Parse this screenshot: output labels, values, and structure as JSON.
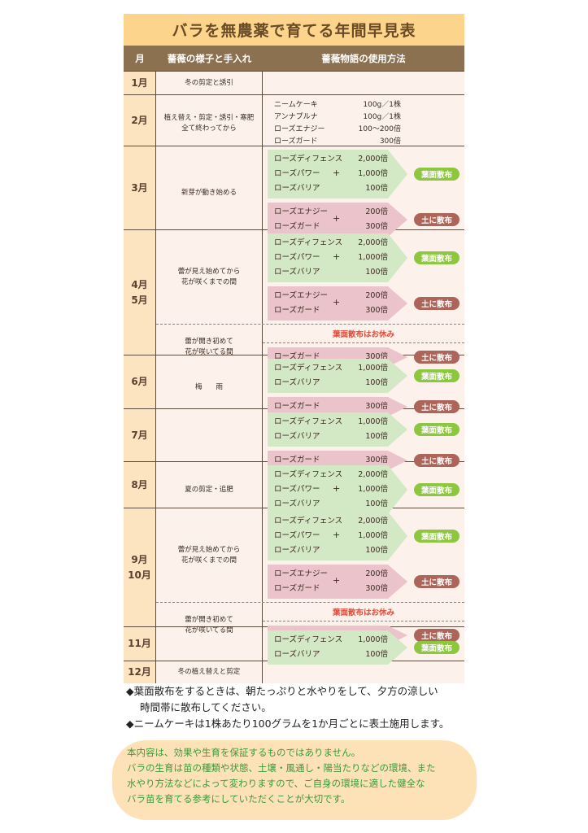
{
  "title": "バラを無農薬で育てる年間早見表",
  "header": {
    "month": "月",
    "care": "薔薇の様子と手入れ",
    "method": "薔薇物語の使用方法"
  },
  "colors": {
    "title_bg": "#fcd48b",
    "header_bg": "#8b7150",
    "month_bg": "#fde4c0",
    "leaf_bg": "#d3e8c4",
    "leaf_badge": "#8dc63f",
    "soil_bg": "#ebc3cb",
    "soil_badge": "#ae6559",
    "rest_text": "#e24b3a",
    "disclaimer_text": "#3a9a3a"
  },
  "rows": [
    {
      "month": "1月",
      "sections": [
        {
          "care": "冬の剪定と誘引",
          "groups": []
        }
      ]
    },
    {
      "month": "2月",
      "sections": [
        {
          "care": "植え替え・剪定・誘引・寒肥\n全て終わってから",
          "plain": [
            {
              "name": "ニームケーキ",
              "ratio": "100g／1株"
            },
            {
              "name": "アンナプルナ",
              "ratio": "100g／1株"
            },
            {
              "name": "ローズエナジー",
              "ratio": "100〜200倍"
            },
            {
              "name": "ローズガード",
              "ratio": "300倍"
            }
          ]
        }
      ]
    },
    {
      "month": "3月",
      "sections": [
        {
          "care": "新芽が動き始める",
          "groups": [
            {
              "type": "leaf",
              "plus": "+",
              "badge": "葉面散布",
              "items": [
                {
                  "name": "ローズディフェンス",
                  "ratio": "2,000倍"
                },
                {
                  "name": "ローズパワー",
                  "ratio": "1,000倍"
                },
                {
                  "name": "ローズバリア",
                  "ratio": "100倍"
                }
              ]
            },
            {
              "type": "soil",
              "plus": "+",
              "badge": "土に散布",
              "items": [
                {
                  "name": "ローズエナジー",
                  "ratio": "200倍"
                },
                {
                  "name": "ローズガード",
                  "ratio": "300倍"
                }
              ]
            }
          ]
        }
      ]
    },
    {
      "month": "4月\n5月",
      "sections": [
        {
          "care": "蕾が見え始めてから\n花が咲くまでの間",
          "groups": [
            {
              "type": "leaf",
              "plus": "+",
              "badge": "葉面散布",
              "items": [
                {
                  "name": "ローズディフェンス",
                  "ratio": "2,000倍"
                },
                {
                  "name": "ローズパワー",
                  "ratio": "1,000倍"
                },
                {
                  "name": "ローズバリア",
                  "ratio": "100倍"
                }
              ]
            },
            {
              "type": "soil",
              "plus": "+",
              "badge": "土に散布",
              "items": [
                {
                  "name": "ローズエナジー",
                  "ratio": "200倍"
                },
                {
                  "name": "ローズガード",
                  "ratio": "300倍"
                }
              ]
            }
          ]
        },
        {
          "care": "蕾が開き初めて\n花が咲いてる間",
          "rest": "葉面散布はお休み",
          "groups": [
            {
              "type": "soil",
              "badge": "土に散布",
              "items": [
                {
                  "name": "ローズガード",
                  "ratio": "300倍"
                }
              ]
            }
          ]
        }
      ]
    },
    {
      "month": "6月",
      "sections": [
        {
          "care": "梅　　雨",
          "groups": [
            {
              "type": "leaf",
              "badge": "葉面散布",
              "items": [
                {
                  "name": "ローズディフェンス",
                  "ratio": "1,000倍"
                },
                {
                  "name": "ローズバリア",
                  "ratio": "100倍"
                }
              ]
            },
            {
              "type": "soil",
              "badge": "土に散布",
              "items": [
                {
                  "name": "ローズガード",
                  "ratio": "300倍"
                }
              ]
            }
          ]
        }
      ]
    },
    {
      "month": "7月",
      "sections": [
        {
          "care": "",
          "groups": [
            {
              "type": "leaf",
              "badge": "葉面散布",
              "items": [
                {
                  "name": "ローズディフェンス",
                  "ratio": "1,000倍"
                },
                {
                  "name": "ローズバリア",
                  "ratio": "100倍"
                }
              ]
            },
            {
              "type": "soil",
              "badge": "土に散布",
              "items": [
                {
                  "name": "ローズガード",
                  "ratio": "300倍"
                }
              ]
            }
          ]
        }
      ]
    },
    {
      "month": "8月",
      "sections": [
        {
          "care": "夏の剪定・追肥",
          "groups": [
            {
              "type": "leaf",
              "plus": "+",
              "badge": "葉面散布",
              "items": [
                {
                  "name": "ローズディフェンス",
                  "ratio": "2,000倍"
                },
                {
                  "name": "ローズパワー",
                  "ratio": "1,000倍"
                },
                {
                  "name": "ローズバリア",
                  "ratio": "100倍"
                }
              ]
            }
          ]
        }
      ]
    },
    {
      "month": "9月\n10月",
      "sections": [
        {
          "care": "蕾が見え始めてから\n花が咲くまでの間",
          "groups": [
            {
              "type": "leaf",
              "plus": "+",
              "badge": "葉面散布",
              "items": [
                {
                  "name": "ローズディフェンス",
                  "ratio": "2,000倍"
                },
                {
                  "name": "ローズパワー",
                  "ratio": "1,000倍"
                },
                {
                  "name": "ローズバリア",
                  "ratio": "100倍"
                }
              ]
            },
            {
              "type": "soil",
              "plus": "+",
              "badge": "土に散布",
              "items": [
                {
                  "name": "ローズエナジー",
                  "ratio": "200倍"
                },
                {
                  "name": "ローズガード",
                  "ratio": "300倍"
                }
              ]
            }
          ]
        },
        {
          "care": "蕾が開き初めて\n花が咲いてる間",
          "rest": "葉面散布はお休み",
          "groups": [
            {
              "type": "soil",
              "badge": "土に散布",
              "items": [
                {
                  "name": "ローズガード",
                  "ratio": "300倍"
                }
              ]
            }
          ]
        }
      ]
    },
    {
      "month": "11月",
      "sections": [
        {
          "care": "",
          "groups": [
            {
              "type": "leaf",
              "badge": "葉面散布",
              "items": [
                {
                  "name": "ローズディフェンス",
                  "ratio": "1,000倍"
                },
                {
                  "name": "ローズバリア",
                  "ratio": "100倍"
                }
              ]
            }
          ]
        }
      ]
    },
    {
      "month": "12月",
      "sections": [
        {
          "care": "冬の植え替えと剪定",
          "groups": []
        }
      ]
    }
  ],
  "notes": [
    "◆葉面散布をするときは、朝たっぷりと水やりをして、夕方の涼しい",
    "時間帯に散布してください。",
    "◆ニームケーキは1株あたり100グラムを1か月ごとに表土施用します。"
  ],
  "disclaimer": [
    "本内容は、効果や生育を保証するものではありません。",
    "バラの生育は苗の種類や状態、土壌・風通し・陽当たりなどの環境、また",
    "水やり方法などによって変わりますので、ご自身の環境に適した健全な",
    "バラ苗を育てる参考にしていただくことが大切です。"
  ]
}
